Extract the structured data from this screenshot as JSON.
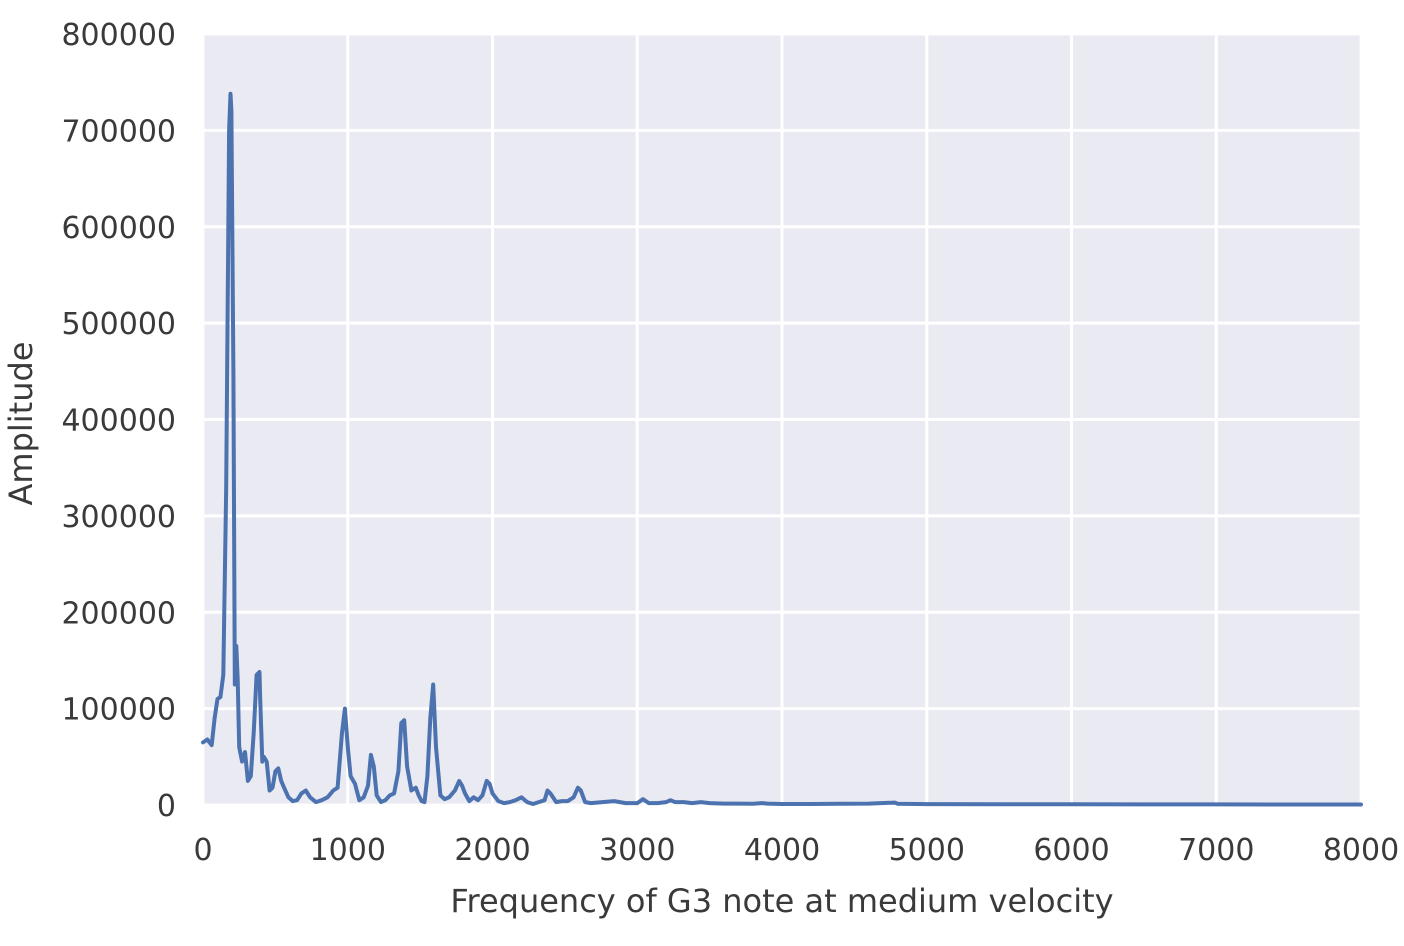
{
  "chart_data": {
    "type": "line",
    "title": "",
    "xlabel": "Frequency of G3 note at medium velocity",
    "ylabel": "Amplitude",
    "xlim": [
      0,
      8000
    ],
    "ylim": [
      0,
      800000
    ],
    "x_ticks": [
      0,
      1000,
      2000,
      3000,
      4000,
      5000,
      6000,
      7000,
      8000
    ],
    "x_tick_labels": [
      "0",
      "1000",
      "2000",
      "3000",
      "4000",
      "5000",
      "6000",
      "7000",
      "8000"
    ],
    "y_ticks": [
      0,
      100000,
      200000,
      300000,
      400000,
      500000,
      600000,
      700000,
      800000
    ],
    "y_tick_labels": [
      "0",
      "100000",
      "200000",
      "300000",
      "400000",
      "500000",
      "600000",
      "700000",
      "800000"
    ],
    "grid": true,
    "background_color": "#eaeaf2",
    "line_color": "#4c72b0",
    "series": [
      {
        "x": [
          0,
          30,
          60,
          80,
          100,
          120,
          140,
          160,
          180,
          190,
          196,
          200,
          210,
          220,
          230,
          240,
          250,
          270,
          290,
          310,
          330,
          350,
          370,
          390,
          395,
          410,
          420,
          440,
          460,
          480,
          500,
          520,
          540,
          560,
          590,
          620,
          650,
          680,
          710,
          740,
          780,
          820,
          860,
          900,
          930,
          960,
          980,
          1000,
          1020,
          1050,
          1080,
          1110,
          1140,
          1160,
          1180,
          1200,
          1230,
          1260,
          1290,
          1320,
          1350,
          1370,
          1390,
          1410,
          1440,
          1470,
          1490,
          1510,
          1530,
          1550,
          1570,
          1590,
          1610,
          1640,
          1670,
          1700,
          1740,
          1770,
          1790,
          1810,
          1840,
          1870,
          1900,
          1930,
          1960,
          1980,
          2000,
          2040,
          2080,
          2120,
          2160,
          2200,
          2240,
          2280,
          2320,
          2360,
          2380,
          2400,
          2440,
          2480,
          2520,
          2560,
          2590,
          2610,
          2640,
          2680,
          2760,
          2840,
          2920,
          3000,
          3040,
          3080,
          3140,
          3200,
          3230,
          3260,
          3320,
          3380,
          3440,
          3500,
          3600,
          3700,
          3800,
          3860,
          3900,
          4000,
          4200,
          4400,
          4600,
          4780,
          4800,
          5000,
          5500,
          6000,
          6500,
          7000,
          7500,
          8000
        ],
        "y": [
          65000,
          68000,
          62000,
          90000,
          110000,
          112000,
          135000,
          330000,
          700000,
          738000,
          720000,
          650000,
          450000,
          125000,
          165000,
          130000,
          60000,
          45000,
          55000,
          25000,
          30000,
          75000,
          135000,
          138000,
          110000,
          45000,
          50000,
          45000,
          15000,
          18000,
          35000,
          38000,
          25000,
          18000,
          8000,
          4000,
          5000,
          12000,
          15000,
          8000,
          3000,
          5000,
          8000,
          15000,
          18000,
          75000,
          100000,
          60000,
          30000,
          22000,
          5000,
          8000,
          20000,
          52000,
          40000,
          10000,
          3000,
          5000,
          10000,
          12000,
          35000,
          85000,
          88000,
          40000,
          15000,
          18000,
          10000,
          4000,
          3000,
          30000,
          90000,
          125000,
          60000,
          10000,
          6000,
          8000,
          15000,
          25000,
          20000,
          12000,
          4000,
          8000,
          5000,
          10000,
          25000,
          22000,
          12000,
          4000,
          2000,
          3000,
          5000,
          8000,
          3000,
          1000,
          3000,
          5000,
          15000,
          12000,
          3000,
          4000,
          4000,
          8000,
          18000,
          15000,
          3000,
          2000,
          3000,
          4000,
          2000,
          2000,
          6000,
          2000,
          2000,
          3000,
          5000,
          3000,
          3000,
          2000,
          3000,
          2000,
          1500,
          1500,
          1200,
          2000,
          1500,
          1000,
          1000,
          1200,
          1500,
          2500,
          1200,
          900,
          800,
          700,
          600,
          600,
          500,
          500
        ]
      }
    ]
  }
}
